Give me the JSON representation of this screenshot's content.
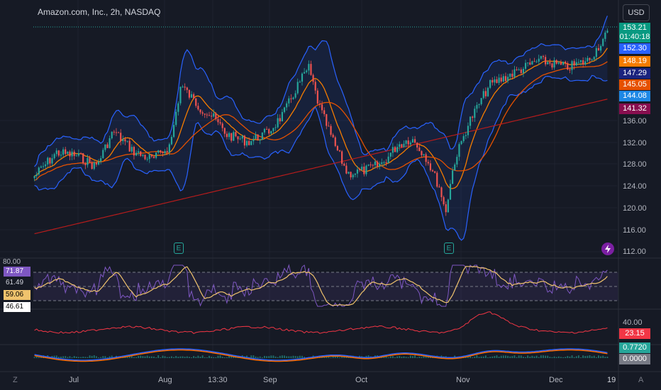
{
  "header": {
    "symbol_title": "Amazon.com, Inc., 2h, NASDAQ",
    "currency_button": "USD"
  },
  "price_axis": {
    "ticks": [
      "136.00",
      "132.00",
      "128.00",
      "124.00",
      "120.00",
      "116.00",
      "112.00"
    ],
    "current_price": "153.21",
    "countdown": "01:40:18",
    "tags": [
      {
        "value": "152.30",
        "color": "#2962ff"
      },
      {
        "value": "148.19",
        "color": "#f57c00"
      },
      {
        "value": "147.29",
        "color": "#1a237e"
      },
      {
        "value": "145.05",
        "color": "#e65100"
      },
      {
        "value": "144.08",
        "color": "#1e88e5"
      },
      {
        "value": "141.32",
        "color": "#880e4f"
      }
    ]
  },
  "rsi_pane": {
    "top_label": "80.00",
    "tags": [
      {
        "value": "71.87",
        "color": "#7e57c2",
        "text": "#ffffff"
      },
      {
        "value": "61.49",
        "color": "#161a25",
        "text": "#d1d4dc"
      },
      {
        "value": "59.06",
        "color": "#f0c36d",
        "text": "#000000"
      },
      {
        "value": "46.61",
        "color": "#ffffff",
        "text": "#000000"
      }
    ]
  },
  "adx_pane": {
    "level_label": "40.00",
    "tag": {
      "value": "23.15",
      "color": "#f23645"
    }
  },
  "macd_pane": {
    "tags": [
      {
        "value": "0.7720",
        "color": "#26a69a"
      },
      {
        "value": "0.0000",
        "color": "#787b86"
      }
    ]
  },
  "time_axis": {
    "labels": [
      "Jul",
      "Aug",
      "13:30",
      "Sep",
      "Oct",
      "Nov",
      "Dec",
      "19"
    ],
    "left_icon": "Z",
    "right_icon": "A"
  },
  "events": [
    {
      "name": "earnings-badge-1",
      "label": "E"
    },
    {
      "name": "earnings-badge-2",
      "label": "E"
    }
  ],
  "colors": {
    "background": "#161a25",
    "bull": "#26a69a",
    "bear": "#ef5350",
    "bollinger": "#2962ff",
    "ema_fast": "#f57c00",
    "ema_slow": "#e65100",
    "sma_long": "#b71c1c",
    "rsi": "#7e57c2",
    "rsi_ma": "#f0c36d",
    "adx": "#f23645"
  }
}
